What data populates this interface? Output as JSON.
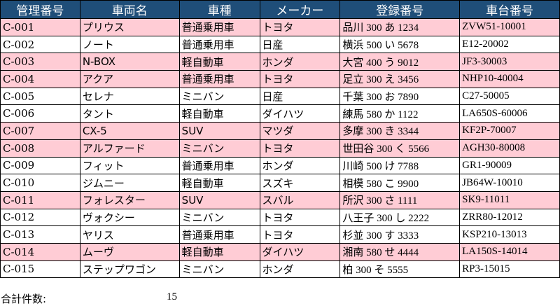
{
  "headers": [
    "管理番号",
    "車両名",
    "車種",
    "メーカー",
    "登録番号",
    "車台番号"
  ],
  "rows": [
    {
      "id": "C-001",
      "name": "プリウス",
      "type": "普通乗用車",
      "maker": "トヨタ",
      "reg": "品川 300 あ 1234",
      "chassis": "ZVW51-10001",
      "highlight": true
    },
    {
      "id": "C-002",
      "name": "ノート",
      "type": "普通乗用車",
      "maker": "日産",
      "reg": "横浜 500 い 5678",
      "chassis": "E12-20002",
      "highlight": false
    },
    {
      "id": "C-003",
      "name": "N-BOX",
      "type": "軽自動車",
      "maker": "ホンダ",
      "reg": "大宮 400 う 9012",
      "chassis": "JF3-30003",
      "highlight": true
    },
    {
      "id": "C-004",
      "name": "アクア",
      "type": "普通乗用車",
      "maker": "トヨタ",
      "reg": "足立 300 え 3456",
      "chassis": "NHP10-40004",
      "highlight": true
    },
    {
      "id": "C-005",
      "name": "セレナ",
      "type": "ミニバン",
      "maker": "日産",
      "reg": "千葉 300 お 7890",
      "chassis": "C27-50005",
      "highlight": false
    },
    {
      "id": "C-006",
      "name": "タント",
      "type": "軽自動車",
      "maker": "ダイハツ",
      "reg": "練馬 580 か 1122",
      "chassis": "LA650S-60006",
      "highlight": false
    },
    {
      "id": "C-007",
      "name": "CX-5",
      "type": "SUV",
      "maker": "マツダ",
      "reg": "多摩 300 き 3344",
      "chassis": "KF2P-70007",
      "highlight": true
    },
    {
      "id": "C-008",
      "name": "アルファード",
      "type": "ミニバン",
      "maker": "トヨタ",
      "reg": "世田谷 300 く 5566",
      "chassis": "AGH30-80008",
      "highlight": true
    },
    {
      "id": "C-009",
      "name": "フィット",
      "type": "普通乗用車",
      "maker": "ホンダ",
      "reg": "川崎 500 け 7788",
      "chassis": "GR1-90009",
      "highlight": false
    },
    {
      "id": "C-010",
      "name": "ジムニー",
      "type": "軽自動車",
      "maker": "スズキ",
      "reg": "相模 580 こ 9900",
      "chassis": "JB64W-10010",
      "highlight": false
    },
    {
      "id": "C-011",
      "name": "フォレスター",
      "type": "SUV",
      "maker": "スバル",
      "reg": "所沢 300 さ 1111",
      "chassis": "SK9-11011",
      "highlight": true
    },
    {
      "id": "C-012",
      "name": "ヴォクシー",
      "type": "ミニバン",
      "maker": "トヨタ",
      "reg": "八王子 300 し 2222",
      "chassis": "ZRR80-12012",
      "highlight": false
    },
    {
      "id": "C-013",
      "name": "ヤリス",
      "type": "普通乗用車",
      "maker": "トヨタ",
      "reg": "杉並 300 す 3333",
      "chassis": "KSP210-13013",
      "highlight": false
    },
    {
      "id": "C-014",
      "name": "ムーヴ",
      "type": "軽自動車",
      "maker": "ダイハツ",
      "reg": "湘南 580 せ 4444",
      "chassis": "LA150S-14014",
      "highlight": true
    },
    {
      "id": "C-015",
      "name": "ステップワゴン",
      "type": "ミニバン",
      "maker": "ホンダ",
      "reg": "柏 300 そ 5555",
      "chassis": "RP3-15015",
      "highlight": false
    }
  ],
  "footer": {
    "label": "合計件数:",
    "count": "15"
  },
  "colors": {
    "header_bg": "#1f4e79",
    "header_text": "#ffffff",
    "highlight_row": "#ffccd5",
    "border": "#000000"
  }
}
